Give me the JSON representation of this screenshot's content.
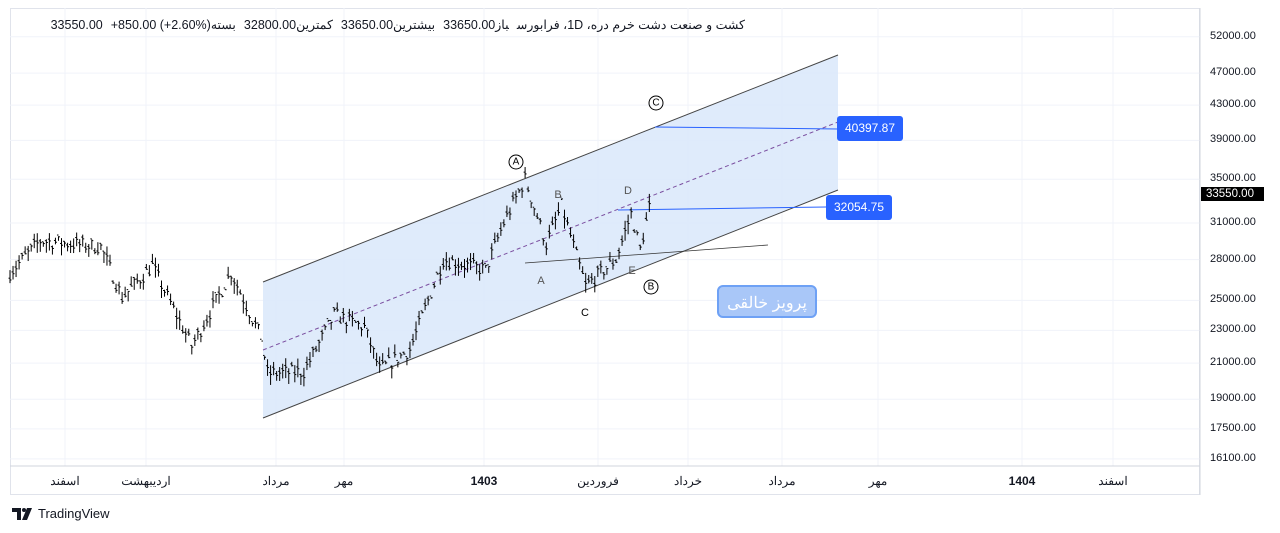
{
  "legend": {
    "symbol": "کشت و صنعت دشت خرم دره، 1D، فرابورس",
    "open_label": "باز",
    "open": "33650.00",
    "high_label": "بیشترین",
    "high": "33650.00",
    "low_label": "کمترین",
    "low": "32800.00",
    "close_label": "بسته",
    "close": "33550.00",
    "change": "+850.00 (+2.60%)"
  },
  "price_axis": {
    "ticks": [
      52000,
      47000,
      43000,
      39000,
      35000,
      31000,
      28000,
      25000,
      23000,
      21000,
      19000,
      17500,
      16100
    ],
    "labels": [
      "52000.00",
      "47000.00",
      "43000.00",
      "39000.00",
      "35000.00",
      "31000.00",
      "28000.00",
      "25000.00",
      "23000.00",
      "21000.00",
      "19000.00",
      "17500.00",
      "16100.00"
    ],
    "current": "33550.00"
  },
  "time_axis": [
    {
      "label": "اسفند",
      "bold": false
    },
    {
      "label": "اردیبهشت",
      "bold": false
    },
    {
      "label": "مرداد",
      "bold": false
    },
    {
      "label": "مهر",
      "bold": false
    },
    {
      "label": "1403",
      "bold": true
    },
    {
      "label": "فروردین",
      "bold": false
    },
    {
      "label": "خرداد",
      "bold": false
    },
    {
      "label": "مرداد",
      "bold": false
    },
    {
      "label": "مهر",
      "bold": false
    },
    {
      "label": "1404",
      "bold": true
    },
    {
      "label": "اسفند",
      "bold": false
    }
  ],
  "price_path": [
    [
      0,
      27000
    ],
    [
      10,
      29500
    ],
    [
      30,
      29000
    ],
    [
      37,
      25200
    ],
    [
      47,
      27500
    ],
    [
      60,
      22000
    ],
    [
      73,
      27000
    ],
    [
      83,
      22500
    ],
    [
      85,
      20400
    ],
    [
      97,
      20500
    ],
    [
      107,
      24000
    ],
    [
      117,
      23200
    ],
    [
      122,
      20600
    ],
    [
      132,
      21800
    ],
    [
      143,
      28000
    ],
    [
      157,
      27200
    ],
    [
      163,
      31000
    ],
    [
      170,
      35000
    ],
    [
      177,
      29200
    ],
    [
      182,
      32500
    ],
    [
      190,
      26000
    ],
    [
      200,
      28000
    ],
    [
      205,
      31800
    ],
    [
      208,
      28800
    ],
    [
      212,
      33550
    ]
  ],
  "annotations": {
    "target_upper": "40397.87",
    "target_lower": "32054.75",
    "wave_labels": [
      "A",
      "B",
      "C"
    ],
    "sub_labels": [
      "B",
      "D",
      "A",
      "C",
      "E"
    ]
  },
  "watermark": "پرویز خالقی",
  "brand": "TradingView",
  "colors": {
    "channel_fill": "#dbe9fb",
    "accent": "#2962ff"
  }
}
